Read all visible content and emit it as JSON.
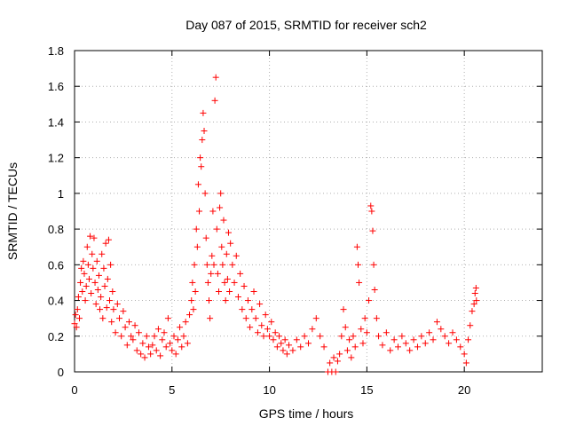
{
  "chart_data": {
    "type": "scatter",
    "title": "Day 087 of 2015, SRMTID for receiver sch2",
    "xlabel": "GPS time / hours",
    "ylabel": "SRMTID / TECUs",
    "xlim": [
      0,
      24
    ],
    "ylim": [
      0,
      1.8
    ],
    "xticks": [
      0,
      5,
      10,
      15,
      20
    ],
    "xtick_labels": [
      "0",
      "5",
      "10",
      "15",
      "20"
    ],
    "yticks": [
      0,
      0.2,
      0.4,
      0.6,
      0.8,
      1.0,
      1.2,
      1.4,
      1.6,
      1.8
    ],
    "ytick_labels": [
      "0",
      "0.2",
      "0.4",
      "0.6",
      "0.8",
      "1",
      "1.2",
      "1.4",
      "1.6",
      "1.8"
    ],
    "grid": true,
    "marker": "plus",
    "series": [
      {
        "name": "SRMTID",
        "color": "#ff0000",
        "points": [
          [
            0.0,
            0.27
          ],
          [
            0.05,
            0.32
          ],
          [
            0.1,
            0.25
          ],
          [
            0.15,
            0.35
          ],
          [
            0.2,
            0.42
          ],
          [
            0.25,
            0.3
          ],
          [
            0.3,
            0.5
          ],
          [
            0.35,
            0.58
          ],
          [
            0.4,
            0.45
          ],
          [
            0.45,
            0.62
          ],
          [
            0.5,
            0.55
          ],
          [
            0.55,
            0.4
          ],
          [
            0.6,
            0.48
          ],
          [
            0.65,
            0.7
          ],
          [
            0.7,
            0.6
          ],
          [
            0.75,
            0.52
          ],
          [
            0.8,
            0.76
          ],
          [
            0.85,
            0.44
          ],
          [
            0.9,
            0.66
          ],
          [
            0.95,
            0.58
          ],
          [
            1.0,
            0.75
          ],
          [
            1.05,
            0.5
          ],
          [
            1.1,
            0.38
          ],
          [
            1.15,
            0.62
          ],
          [
            1.2,
            0.46
          ],
          [
            1.25,
            0.54
          ],
          [
            1.3,
            0.35
          ],
          [
            1.35,
            0.42
          ],
          [
            1.4,
            0.66
          ],
          [
            1.45,
            0.3
          ],
          [
            1.5,
            0.58
          ],
          [
            1.55,
            0.48
          ],
          [
            1.6,
            0.72
          ],
          [
            1.65,
            0.36
          ],
          [
            1.7,
            0.52
          ],
          [
            1.75,
            0.74
          ],
          [
            1.8,
            0.4
          ],
          [
            1.85,
            0.6
          ],
          [
            1.9,
            0.28
          ],
          [
            1.95,
            0.45
          ],
          [
            2.0,
            0.35
          ],
          [
            2.1,
            0.22
          ],
          [
            2.2,
            0.38
          ],
          [
            2.3,
            0.3
          ],
          [
            2.4,
            0.2
          ],
          [
            2.5,
            0.34
          ],
          [
            2.6,
            0.25
          ],
          [
            2.7,
            0.15
          ],
          [
            2.8,
            0.28
          ],
          [
            2.9,
            0.2
          ],
          [
            3.0,
            0.18
          ],
          [
            3.1,
            0.26
          ],
          [
            3.2,
            0.12
          ],
          [
            3.3,
            0.22
          ],
          [
            3.4,
            0.1
          ],
          [
            3.5,
            0.16
          ],
          [
            3.6,
            0.08
          ],
          [
            3.7,
            0.2
          ],
          [
            3.8,
            0.14
          ],
          [
            3.9,
            0.1
          ],
          [
            4.0,
            0.15
          ],
          [
            4.1,
            0.2
          ],
          [
            4.2,
            0.12
          ],
          [
            4.3,
            0.24
          ],
          [
            4.4,
            0.09
          ],
          [
            4.5,
            0.18
          ],
          [
            4.6,
            0.22
          ],
          [
            4.7,
            0.14
          ],
          [
            4.8,
            0.3
          ],
          [
            4.9,
            0.16
          ],
          [
            5.0,
            0.12
          ],
          [
            5.1,
            0.2
          ],
          [
            5.2,
            0.1
          ],
          [
            5.3,
            0.18
          ],
          [
            5.4,
            0.25
          ],
          [
            5.5,
            0.14
          ],
          [
            5.6,
            0.2
          ],
          [
            5.7,
            0.28
          ],
          [
            5.8,
            0.16
          ],
          [
            5.9,
            0.32
          ],
          [
            6.0,
            0.4
          ],
          [
            6.05,
            0.5
          ],
          [
            6.1,
            0.35
          ],
          [
            6.15,
            0.6
          ],
          [
            6.2,
            0.45
          ],
          [
            6.25,
            0.8
          ],
          [
            6.3,
            0.7
          ],
          [
            6.35,
            1.05
          ],
          [
            6.4,
            0.9
          ],
          [
            6.45,
            1.2
          ],
          [
            6.5,
            1.15
          ],
          [
            6.55,
            1.3
          ],
          [
            6.6,
            1.45
          ],
          [
            6.65,
            1.35
          ],
          [
            6.7,
            1.0
          ],
          [
            6.75,
            0.75
          ],
          [
            6.8,
            0.6
          ],
          [
            6.85,
            0.5
          ],
          [
            6.9,
            0.4
          ],
          [
            6.95,
            0.3
          ],
          [
            7.0,
            0.55
          ],
          [
            7.05,
            0.65
          ],
          [
            7.1,
            0.9
          ],
          [
            7.15,
            0.6
          ],
          [
            7.2,
            1.52
          ],
          [
            7.25,
            1.65
          ],
          [
            7.3,
            0.8
          ],
          [
            7.35,
            0.55
          ],
          [
            7.4,
            0.45
          ],
          [
            7.45,
            0.92
          ],
          [
            7.5,
            1.0
          ],
          [
            7.55,
            0.7
          ],
          [
            7.6,
            0.6
          ],
          [
            7.65,
            0.85
          ],
          [
            7.7,
            0.5
          ],
          [
            7.75,
            0.4
          ],
          [
            7.8,
            0.66
          ],
          [
            7.85,
            0.52
          ],
          [
            7.9,
            0.78
          ],
          [
            7.95,
            0.45
          ],
          [
            8.0,
            0.72
          ],
          [
            8.1,
            0.6
          ],
          [
            8.2,
            0.5
          ],
          [
            8.3,
            0.65
          ],
          [
            8.4,
            0.42
          ],
          [
            8.5,
            0.55
          ],
          [
            8.6,
            0.35
          ],
          [
            8.7,
            0.48
          ],
          [
            8.8,
            0.3
          ],
          [
            8.9,
            0.4
          ],
          [
            9.0,
            0.25
          ],
          [
            9.1,
            0.35
          ],
          [
            9.2,
            0.45
          ],
          [
            9.3,
            0.3
          ],
          [
            9.4,
            0.22
          ],
          [
            9.5,
            0.38
          ],
          [
            9.6,
            0.26
          ],
          [
            9.7,
            0.2
          ],
          [
            9.8,
            0.32
          ],
          [
            9.9,
            0.24
          ],
          [
            10.0,
            0.2
          ],
          [
            10.1,
            0.28
          ],
          [
            10.2,
            0.18
          ],
          [
            10.3,
            0.22
          ],
          [
            10.4,
            0.14
          ],
          [
            10.5,
            0.2
          ],
          [
            10.6,
            0.16
          ],
          [
            10.7,
            0.12
          ],
          [
            10.8,
            0.18
          ],
          [
            10.9,
            0.1
          ],
          [
            11.0,
            0.15
          ],
          [
            11.2,
            0.12
          ],
          [
            11.4,
            0.18
          ],
          [
            11.6,
            0.14
          ],
          [
            11.8,
            0.2
          ],
          [
            12.0,
            0.16
          ],
          [
            12.2,
            0.24
          ],
          [
            12.4,
            0.3
          ],
          [
            12.6,
            0.2
          ],
          [
            12.8,
            0.14
          ],
          [
            13.0,
            0.0
          ],
          [
            13.1,
            0.05
          ],
          [
            13.2,
            0.0
          ],
          [
            13.3,
            0.08
          ],
          [
            13.4,
            0.0
          ],
          [
            13.5,
            0.06
          ],
          [
            13.6,
            0.1
          ],
          [
            13.7,
            0.2
          ],
          [
            13.8,
            0.35
          ],
          [
            13.9,
            0.25
          ],
          [
            14.0,
            0.12
          ],
          [
            14.1,
            0.18
          ],
          [
            14.2,
            0.08
          ],
          [
            14.3,
            0.2
          ],
          [
            14.4,
            0.14
          ],
          [
            14.5,
            0.7
          ],
          [
            14.55,
            0.6
          ],
          [
            14.6,
            0.5
          ],
          [
            14.7,
            0.24
          ],
          [
            14.8,
            0.16
          ],
          [
            14.9,
            0.3
          ],
          [
            15.0,
            0.22
          ],
          [
            15.1,
            0.4
          ],
          [
            15.2,
            0.93
          ],
          [
            15.25,
            0.9
          ],
          [
            15.3,
            0.79
          ],
          [
            15.35,
            0.6
          ],
          [
            15.4,
            0.46
          ],
          [
            15.5,
            0.3
          ],
          [
            15.6,
            0.2
          ],
          [
            15.8,
            0.15
          ],
          [
            16.0,
            0.22
          ],
          [
            16.2,
            0.12
          ],
          [
            16.4,
            0.18
          ],
          [
            16.6,
            0.14
          ],
          [
            16.8,
            0.2
          ],
          [
            17.0,
            0.16
          ],
          [
            17.2,
            0.12
          ],
          [
            17.4,
            0.18
          ],
          [
            17.6,
            0.14
          ],
          [
            17.8,
            0.2
          ],
          [
            18.0,
            0.16
          ],
          [
            18.2,
            0.22
          ],
          [
            18.4,
            0.18
          ],
          [
            18.6,
            0.28
          ],
          [
            18.8,
            0.24
          ],
          [
            19.0,
            0.2
          ],
          [
            19.2,
            0.16
          ],
          [
            19.4,
            0.22
          ],
          [
            19.6,
            0.18
          ],
          [
            19.8,
            0.14
          ],
          [
            20.0,
            0.1
          ],
          [
            20.1,
            0.05
          ],
          [
            20.2,
            0.18
          ],
          [
            20.3,
            0.26
          ],
          [
            20.4,
            0.34
          ],
          [
            20.5,
            0.38
          ],
          [
            20.55,
            0.44
          ],
          [
            20.6,
            0.47
          ],
          [
            20.62,
            0.4
          ]
        ]
      }
    ]
  }
}
